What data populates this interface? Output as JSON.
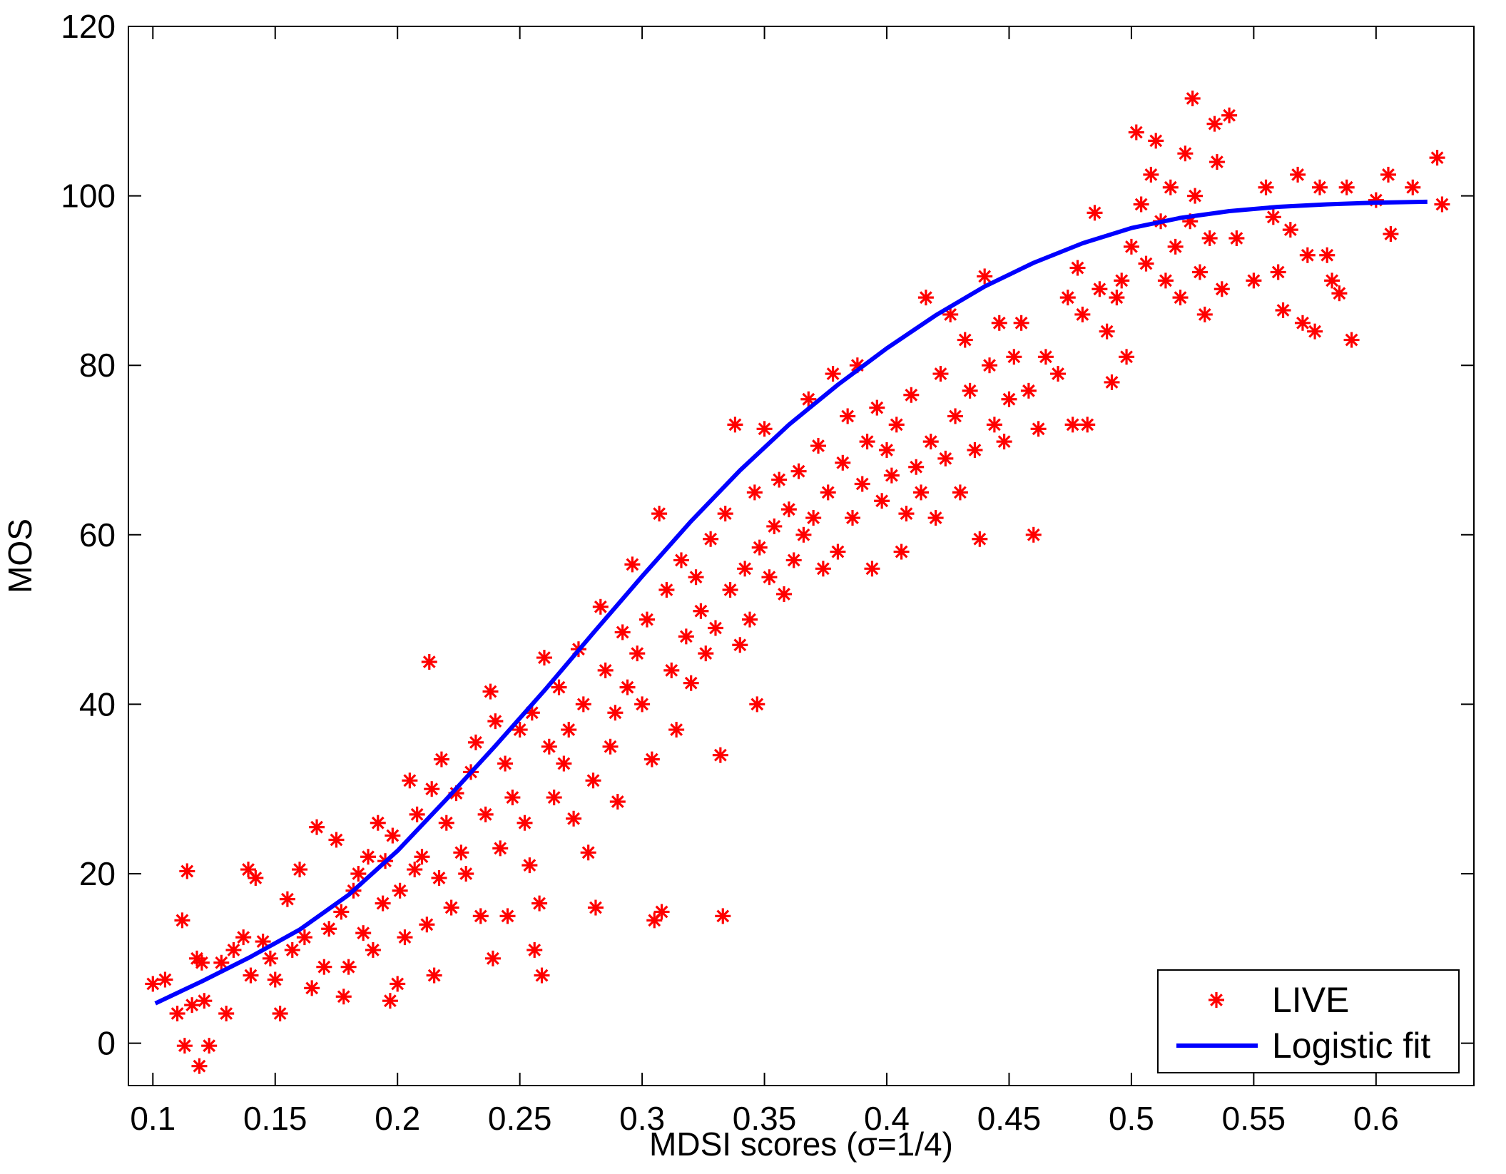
{
  "chart_data": {
    "type": "scatter",
    "xlabel": "MDSI scores (σ=1/4)",
    "ylabel": "MOS",
    "xlim": [
      0.09,
      0.64
    ],
    "ylim": [
      -5,
      120
    ],
    "xticks": [
      0.1,
      0.15,
      0.2,
      0.25,
      0.3,
      0.35,
      0.4,
      0.45,
      0.5,
      0.55,
      0.6
    ],
    "xtick_labels": [
      "0.1",
      "0.15",
      "0.2",
      "0.25",
      "0.3",
      "0.35",
      "0.4",
      "0.45",
      "0.5",
      "0.55",
      "0.6"
    ],
    "yticks": [
      0,
      20,
      40,
      60,
      80,
      100,
      120
    ],
    "ytick_labels": [
      "0",
      "20",
      "40",
      "60",
      "80",
      "100",
      "120"
    ],
    "grid": false,
    "legend_position": "bottom-right",
    "legend": [
      {
        "label": "LIVE",
        "marker": "asterisk",
        "color": "#ff0000"
      },
      {
        "label": "Logistic fit",
        "marker": "line",
        "color": "#0000ff"
      }
    ],
    "series": [
      {
        "name": "LIVE",
        "kind": "scatter",
        "color": "#ff0000",
        "points": [
          [
            0.1,
            7
          ],
          [
            0.105,
            7.5
          ],
          [
            0.11,
            3.5
          ],
          [
            0.112,
            14.5
          ],
          [
            0.114,
            20.3
          ],
          [
            0.113,
            -0.3
          ],
          [
            0.116,
            4.5
          ],
          [
            0.118,
            10
          ],
          [
            0.119,
            -2.7
          ],
          [
            0.12,
            9.5
          ],
          [
            0.121,
            5
          ],
          [
            0.123,
            -0.3
          ],
          [
            0.128,
            9.5
          ],
          [
            0.13,
            3.5
          ],
          [
            0.133,
            11
          ],
          [
            0.137,
            12.5
          ],
          [
            0.139,
            20.5
          ],
          [
            0.14,
            8
          ],
          [
            0.142,
            19.5
          ],
          [
            0.145,
            12
          ],
          [
            0.148,
            10
          ],
          [
            0.15,
            7.5
          ],
          [
            0.152,
            3.5
          ],
          [
            0.155,
            17
          ],
          [
            0.157,
            11
          ],
          [
            0.16,
            20.5
          ],
          [
            0.162,
            12.5
          ],
          [
            0.165,
            6.5
          ],
          [
            0.167,
            25.5
          ],
          [
            0.17,
            9
          ],
          [
            0.172,
            13.5
          ],
          [
            0.175,
            24
          ],
          [
            0.177,
            15.5
          ],
          [
            0.178,
            5.5
          ],
          [
            0.18,
            9
          ],
          [
            0.182,
            18
          ],
          [
            0.184,
            20
          ],
          [
            0.186,
            13
          ],
          [
            0.188,
            22
          ],
          [
            0.19,
            11
          ],
          [
            0.192,
            26
          ],
          [
            0.194,
            16.5
          ],
          [
            0.195,
            21.5
          ],
          [
            0.197,
            5
          ],
          [
            0.198,
            24.5
          ],
          [
            0.2,
            7
          ],
          [
            0.201,
            18
          ],
          [
            0.203,
            12.5
          ],
          [
            0.205,
            31
          ],
          [
            0.207,
            20.5
          ],
          [
            0.208,
            27
          ],
          [
            0.21,
            22
          ],
          [
            0.212,
            14
          ],
          [
            0.213,
            45
          ],
          [
            0.214,
            30
          ],
          [
            0.215,
            8
          ],
          [
            0.217,
            19.5
          ],
          [
            0.218,
            33.5
          ],
          [
            0.22,
            26
          ],
          [
            0.222,
            16
          ],
          [
            0.224,
            29.5
          ],
          [
            0.226,
            22.5
          ],
          [
            0.228,
            20
          ],
          [
            0.23,
            32
          ],
          [
            0.232,
            35.5
          ],
          [
            0.234,
            15
          ],
          [
            0.236,
            27
          ],
          [
            0.238,
            41.5
          ],
          [
            0.239,
            10
          ],
          [
            0.24,
            38
          ],
          [
            0.242,
            23
          ],
          [
            0.244,
            33
          ],
          [
            0.245,
            15
          ],
          [
            0.247,
            29
          ],
          [
            0.25,
            37
          ],
          [
            0.252,
            26
          ],
          [
            0.254,
            21
          ],
          [
            0.255,
            39
          ],
          [
            0.256,
            11
          ],
          [
            0.258,
            16.5
          ],
          [
            0.259,
            8
          ],
          [
            0.26,
            45.5
          ],
          [
            0.262,
            35
          ],
          [
            0.264,
            29
          ],
          [
            0.266,
            42
          ],
          [
            0.268,
            33
          ],
          [
            0.27,
            37
          ],
          [
            0.272,
            26.5
          ],
          [
            0.274,
            46.5
          ],
          [
            0.276,
            40
          ],
          [
            0.278,
            22.5
          ],
          [
            0.28,
            31
          ],
          [
            0.281,
            16
          ],
          [
            0.283,
            51.5
          ],
          [
            0.285,
            44
          ],
          [
            0.287,
            35
          ],
          [
            0.289,
            39
          ],
          [
            0.29,
            28.5
          ],
          [
            0.292,
            48.5
          ],
          [
            0.294,
            42
          ],
          [
            0.296,
            56.5
          ],
          [
            0.298,
            46
          ],
          [
            0.3,
            40
          ],
          [
            0.302,
            50
          ],
          [
            0.304,
            33.5
          ],
          [
            0.305,
            14.5
          ],
          [
            0.307,
            62.5
          ],
          [
            0.308,
            15.5
          ],
          [
            0.31,
            53.5
          ],
          [
            0.312,
            44
          ],
          [
            0.314,
            37
          ],
          [
            0.316,
            57
          ],
          [
            0.318,
            48
          ],
          [
            0.32,
            42.5
          ],
          [
            0.322,
            55
          ],
          [
            0.324,
            51
          ],
          [
            0.326,
            46
          ],
          [
            0.328,
            59.5
          ],
          [
            0.33,
            49
          ],
          [
            0.332,
            34
          ],
          [
            0.333,
            15
          ],
          [
            0.334,
            62.5
          ],
          [
            0.336,
            53.5
          ],
          [
            0.338,
            73
          ],
          [
            0.34,
            47
          ],
          [
            0.342,
            56
          ],
          [
            0.344,
            50
          ],
          [
            0.346,
            65
          ],
          [
            0.347,
            40
          ],
          [
            0.348,
            58.5
          ],
          [
            0.35,
            72.5
          ],
          [
            0.352,
            55
          ],
          [
            0.354,
            61
          ],
          [
            0.356,
            66.5
          ],
          [
            0.358,
            53
          ],
          [
            0.36,
            63
          ],
          [
            0.362,
            57
          ],
          [
            0.364,
            67.5
          ],
          [
            0.366,
            60
          ],
          [
            0.368,
            76
          ],
          [
            0.37,
            62
          ],
          [
            0.372,
            70.5
          ],
          [
            0.374,
            56
          ],
          [
            0.376,
            65
          ],
          [
            0.378,
            79
          ],
          [
            0.38,
            58
          ],
          [
            0.382,
            68.5
          ],
          [
            0.384,
            74
          ],
          [
            0.386,
            62
          ],
          [
            0.388,
            80
          ],
          [
            0.39,
            66
          ],
          [
            0.392,
            71
          ],
          [
            0.394,
            56
          ],
          [
            0.396,
            75
          ],
          [
            0.398,
            64
          ],
          [
            0.4,
            70
          ],
          [
            0.402,
            67
          ],
          [
            0.404,
            73
          ],
          [
            0.406,
            58
          ],
          [
            0.408,
            62.5
          ],
          [
            0.41,
            76.5
          ],
          [
            0.412,
            68
          ],
          [
            0.414,
            65
          ],
          [
            0.416,
            88
          ],
          [
            0.418,
            71
          ],
          [
            0.42,
            62
          ],
          [
            0.422,
            79
          ],
          [
            0.424,
            69
          ],
          [
            0.426,
            86
          ],
          [
            0.428,
            74
          ],
          [
            0.43,
            65
          ],
          [
            0.432,
            83
          ],
          [
            0.434,
            77
          ],
          [
            0.436,
            70
          ],
          [
            0.438,
            59.5
          ],
          [
            0.44,
            90.5
          ],
          [
            0.442,
            80
          ],
          [
            0.444,
            73
          ],
          [
            0.446,
            85
          ],
          [
            0.448,
            71
          ],
          [
            0.45,
            76
          ],
          [
            0.452,
            81
          ],
          [
            0.455,
            85
          ],
          [
            0.458,
            77
          ],
          [
            0.46,
            60
          ],
          [
            0.462,
            72.5
          ],
          [
            0.465,
            81
          ],
          [
            0.47,
            79
          ],
          [
            0.474,
            88
          ],
          [
            0.476,
            73
          ],
          [
            0.478,
            91.5
          ],
          [
            0.48,
            86
          ],
          [
            0.482,
            73
          ],
          [
            0.485,
            98
          ],
          [
            0.487,
            89
          ],
          [
            0.49,
            84
          ],
          [
            0.492,
            78
          ],
          [
            0.494,
            88
          ],
          [
            0.496,
            90
          ],
          [
            0.498,
            81
          ],
          [
            0.5,
            94
          ],
          [
            0.502,
            107.5
          ],
          [
            0.504,
            99
          ],
          [
            0.506,
            92
          ],
          [
            0.508,
            102.5
          ],
          [
            0.51,
            106.5
          ],
          [
            0.512,
            97
          ],
          [
            0.514,
            90
          ],
          [
            0.516,
            101
          ],
          [
            0.518,
            94
          ],
          [
            0.52,
            88
          ],
          [
            0.522,
            105
          ],
          [
            0.524,
            97
          ],
          [
            0.525,
            111.5
          ],
          [
            0.526,
            100
          ],
          [
            0.528,
            91
          ],
          [
            0.53,
            86
          ],
          [
            0.532,
            95
          ],
          [
            0.534,
            108.5
          ],
          [
            0.535,
            104
          ],
          [
            0.537,
            89
          ],
          [
            0.54,
            109.5
          ],
          [
            0.543,
            95
          ],
          [
            0.55,
            90
          ],
          [
            0.555,
            101
          ],
          [
            0.558,
            97.5
          ],
          [
            0.56,
            91
          ],
          [
            0.562,
            86.5
          ],
          [
            0.565,
            96
          ],
          [
            0.568,
            102.5
          ],
          [
            0.57,
            85
          ],
          [
            0.572,
            93
          ],
          [
            0.575,
            84
          ],
          [
            0.577,
            101
          ],
          [
            0.58,
            93
          ],
          [
            0.582,
            90
          ],
          [
            0.585,
            88.5
          ],
          [
            0.588,
            101
          ],
          [
            0.59,
            83
          ],
          [
            0.6,
            99.5
          ],
          [
            0.605,
            102.5
          ],
          [
            0.606,
            95.5
          ],
          [
            0.615,
            101
          ],
          [
            0.625,
            104.5
          ],
          [
            0.627,
            99
          ]
        ]
      },
      {
        "name": "Logistic fit",
        "kind": "line",
        "color": "#0000ff",
        "points": [
          [
            0.101,
            4.7
          ],
          [
            0.12,
            7.3
          ],
          [
            0.14,
            10.2
          ],
          [
            0.16,
            13.4
          ],
          [
            0.18,
            17.5
          ],
          [
            0.2,
            22.7
          ],
          [
            0.22,
            28.8
          ],
          [
            0.24,
            35.1
          ],
          [
            0.26,
            41.6
          ],
          [
            0.28,
            48.4
          ],
          [
            0.3,
            55.1
          ],
          [
            0.32,
            61.6
          ],
          [
            0.34,
            67.6
          ],
          [
            0.36,
            73
          ],
          [
            0.38,
            77.7
          ],
          [
            0.4,
            82
          ],
          [
            0.42,
            85.9
          ],
          [
            0.44,
            89.3
          ],
          [
            0.46,
            92.1
          ],
          [
            0.48,
            94.4
          ],
          [
            0.5,
            96.2
          ],
          [
            0.52,
            97.4
          ],
          [
            0.54,
            98.2
          ],
          [
            0.56,
            98.7
          ],
          [
            0.58,
            99
          ],
          [
            0.6,
            99.2
          ],
          [
            0.621,
            99.3
          ]
        ]
      }
    ]
  }
}
